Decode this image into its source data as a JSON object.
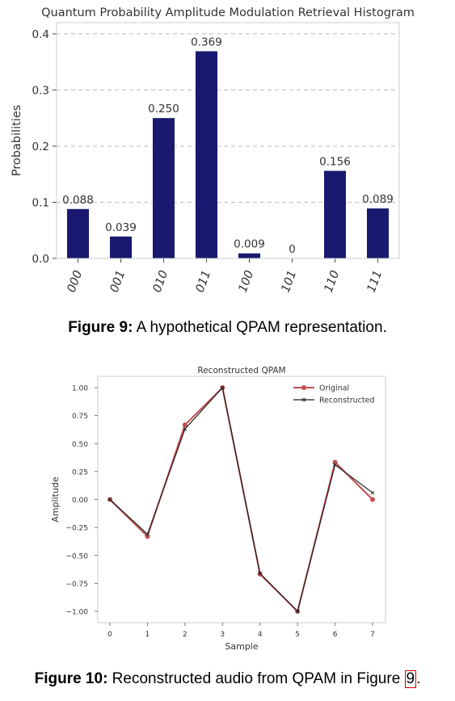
{
  "chart_data": [
    {
      "type": "bar",
      "title": "Quantum Probability Amplitude Modulation Retrieval Histogram",
      "xlabel": "",
      "ylabel": "Probabilities",
      "categories": [
        "000",
        "001",
        "010",
        "011",
        "100",
        "101",
        "110",
        "111"
      ],
      "values": [
        0.088,
        0.039,
        0.25,
        0.369,
        0.009,
        0,
        0.156,
        0.089
      ],
      "value_labels": [
        "0.088",
        "0.039",
        "0.250",
        "0.369",
        "0.009",
        "0",
        "0.156",
        "0.089"
      ],
      "ylim": [
        0,
        0.42
      ],
      "yticks": [
        0.0,
        0.1,
        0.2,
        0.3,
        0.4
      ],
      "ytick_labels": [
        "0.0",
        "0.1",
        "0.2",
        "0.3",
        "0.4"
      ],
      "grid": true,
      "colors": {
        "bar": "#191970",
        "grid": "#bbbbbb"
      }
    },
    {
      "type": "line",
      "title": "Reconstructed QPAM",
      "xlabel": "Sample",
      "ylabel": "Amplitude",
      "x": [
        0,
        1,
        2,
        3,
        4,
        5,
        6,
        7
      ],
      "xtick_labels": [
        "0",
        "1",
        "2",
        "3",
        "4",
        "5",
        "6",
        "7"
      ],
      "ylim": [
        -1.1,
        1.1
      ],
      "yticks": [
        1.0,
        0.75,
        0.5,
        0.25,
        0.0,
        -0.25,
        -0.5,
        -0.75,
        -1.0
      ],
      "ytick_labels": [
        "1.00",
        "0.75",
        "0.50",
        "0.25",
        "0.00",
        "−0.25",
        "−0.50",
        "−0.75",
        "−1.00"
      ],
      "legend_position": "top-right",
      "grid": false,
      "series": [
        {
          "name": "Original",
          "values": [
            0,
            -0.33,
            0.667,
            1.0,
            -0.667,
            -1.0,
            0.333,
            0
          ],
          "color": "#c44e52",
          "marker": "circle"
        },
        {
          "name": "Reconstructed",
          "values": [
            0,
            -0.31,
            0.63,
            1.0,
            -0.66,
            -1.0,
            0.31,
            0.06
          ],
          "color": "#222222",
          "marker": "x"
        }
      ]
    }
  ],
  "captions": {
    "fig9_label": "Figure 9:",
    "fig9_text": " A hypothetical QPAM representation.",
    "fig10_label": "Figure 10:",
    "fig10_text": " Reconstructed audio from QPAM in Figure ",
    "fig10_ref": "9",
    "fig10_end": "."
  }
}
